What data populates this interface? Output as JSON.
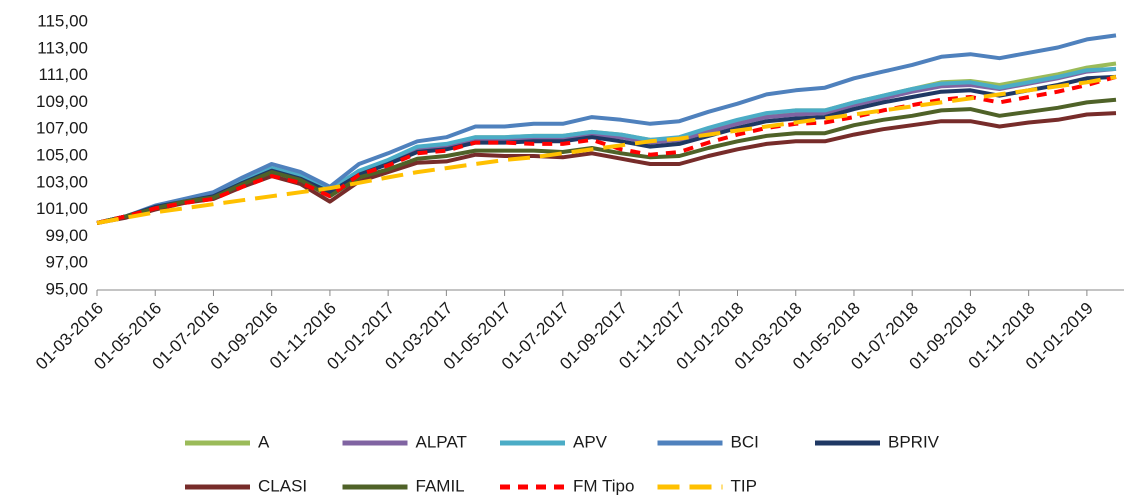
{
  "chart_data": {
    "type": "line",
    "categories": [
      "01-03-2016",
      null,
      "01-05-2016",
      null,
      "01-07-2016",
      null,
      "01-09-2016",
      null,
      "01-11-2016",
      null,
      "01-01-2017",
      null,
      "01-03-2017",
      null,
      "01-05-2017",
      null,
      "01-07-2017",
      null,
      "01-09-2017",
      null,
      "01-11-2017",
      null,
      "01-01-2018",
      null,
      "01-03-2018",
      null,
      "01-05-2018",
      null,
      "01-07-2018",
      null,
      "01-09-2018",
      null,
      "01-11-2018",
      null,
      "01-01-2019",
      null
    ],
    "ylim": [
      95,
      115
    ],
    "yticks": [
      {
        "value": 95,
        "label": "95,00"
      },
      {
        "value": 97,
        "label": "97,00"
      },
      {
        "value": 99,
        "label": "99,00"
      },
      {
        "value": 101,
        "label": "101,00"
      },
      {
        "value": 103,
        "label": "103,00"
      },
      {
        "value": 105,
        "label": "105,00"
      },
      {
        "value": 107,
        "label": "107,00"
      },
      {
        "value": 109,
        "label": "109,00"
      },
      {
        "value": 111,
        "label": "111,00"
      },
      {
        "value": 113,
        "label": "113,00"
      },
      {
        "value": 115,
        "label": "115,00"
      }
    ],
    "grid": false,
    "series": [
      {
        "name": "A",
        "color": "#9bbb59",
        "dashed": false,
        "values": [
          100,
          100.5,
          101.2,
          101.7,
          102.1,
          103.2,
          104.1,
          103.5,
          102.5,
          103.8,
          104.6,
          105.6,
          105.8,
          106.4,
          106.4,
          106.5,
          106.5,
          106.8,
          106.6,
          106.2,
          106.3,
          107.0,
          107.6,
          108.1,
          108.4,
          108.4,
          109.0,
          109.5,
          110.0,
          110.5,
          110.6,
          110.3,
          110.7,
          111.1,
          111.6,
          111.9
        ]
      },
      {
        "name": "ALPAT",
        "color": "#8064a2",
        "dashed": false,
        "values": [
          100,
          100.5,
          101.2,
          101.7,
          102.1,
          103.1,
          104.0,
          103.4,
          102.4,
          103.7,
          104.5,
          105.5,
          105.7,
          106.2,
          106.2,
          106.3,
          106.3,
          106.6,
          106.4,
          106.0,
          106.2,
          106.8,
          107.4,
          107.9,
          108.1,
          108.2,
          108.8,
          109.3,
          109.8,
          110.2,
          110.3,
          110.0,
          110.4,
          110.8,
          111.3,
          111.5
        ]
      },
      {
        "name": "APV",
        "color": "#4bacc6",
        "dashed": false,
        "values": [
          100,
          100.5,
          101.2,
          101.7,
          102.2,
          103.2,
          104.1,
          103.5,
          102.5,
          103.9,
          104.7,
          105.7,
          105.9,
          106.4,
          106.4,
          106.5,
          106.5,
          106.8,
          106.6,
          106.2,
          106.4,
          107.1,
          107.7,
          108.2,
          108.4,
          108.4,
          109.0,
          109.5,
          110.0,
          110.4,
          110.5,
          110.1,
          110.5,
          110.9,
          111.4,
          111.5
        ]
      },
      {
        "name": "BCI",
        "color": "#4f81bd",
        "dashed": false,
        "values": [
          100,
          100.5,
          101.3,
          101.8,
          102.3,
          103.4,
          104.4,
          103.8,
          102.7,
          104.4,
          105.2,
          106.1,
          106.4,
          107.2,
          107.2,
          107.4,
          107.4,
          107.9,
          107.7,
          107.4,
          107.6,
          108.3,
          108.9,
          109.6,
          109.9,
          110.1,
          110.8,
          111.3,
          111.8,
          112.4,
          112.6,
          112.3,
          112.7,
          113.1,
          113.7,
          114.0
        ]
      },
      {
        "name": "BPRIV",
        "color": "#1f3864",
        "dashed": false,
        "values": [
          100,
          100.5,
          101.2,
          101.6,
          102.0,
          103.0,
          103.9,
          103.3,
          102.3,
          103.6,
          104.4,
          105.3,
          105.5,
          106.0,
          106.0,
          106.1,
          106.1,
          106.4,
          106.1,
          105.7,
          105.9,
          106.5,
          107.1,
          107.6,
          107.8,
          107.9,
          108.5,
          109.0,
          109.4,
          109.8,
          109.9,
          109.5,
          109.9,
          110.3,
          110.8,
          110.9
        ]
      },
      {
        "name": "CLASI",
        "color": "#772c2a",
        "dashed": false,
        "values": [
          100,
          100.4,
          101.0,
          101.5,
          101.8,
          102.7,
          103.5,
          102.9,
          101.6,
          103.1,
          103.8,
          104.5,
          104.6,
          105.1,
          105.0,
          105.0,
          104.9,
          105.2,
          104.8,
          104.4,
          104.4,
          105.0,
          105.5,
          105.9,
          106.1,
          106.1,
          106.6,
          107.0,
          107.3,
          107.6,
          107.6,
          107.2,
          107.5,
          107.7,
          108.1,
          108.2
        ]
      },
      {
        "name": "FAMIL",
        "color": "#4f6228",
        "dashed": false,
        "values": [
          100,
          100.5,
          101.1,
          101.6,
          101.9,
          102.9,
          103.8,
          103.2,
          102.0,
          103.4,
          104.0,
          104.8,
          105.0,
          105.4,
          105.4,
          105.4,
          105.3,
          105.6,
          105.2,
          104.9,
          105.0,
          105.6,
          106.1,
          106.5,
          106.7,
          106.7,
          107.3,
          107.7,
          108.0,
          108.4,
          108.5,
          108.0,
          108.3,
          108.6,
          109.0,
          109.2
        ]
      },
      {
        "name": "FM Tipo",
        "color": "#ff0000",
        "dashed": true,
        "values": [
          100,
          100.5,
          101.1,
          101.5,
          101.8,
          102.7,
          103.5,
          103.0,
          102.0,
          103.6,
          104.3,
          105.2,
          105.4,
          106.0,
          106.0,
          105.9,
          105.9,
          106.2,
          105.5,
          105.1,
          105.3,
          106.0,
          106.6,
          107.1,
          107.4,
          107.5,
          107.9,
          108.4,
          108.8,
          109.2,
          109.4,
          109.0,
          109.4,
          109.8,
          110.3,
          110.9
        ]
      },
      {
        "name": "TIP",
        "color": "#ffc000",
        "dashed": true,
        "values": [
          100,
          100.4,
          100.8,
          101.1,
          101.4,
          101.7,
          102.0,
          102.3,
          102.6,
          103.0,
          103.4,
          103.8,
          104.1,
          104.4,
          104.7,
          104.9,
          105.2,
          105.5,
          105.8,
          106.1,
          106.3,
          106.6,
          106.9,
          107.2,
          107.5,
          107.8,
          108.1,
          108.4,
          108.7,
          109.0,
          109.3,
          109.6,
          109.9,
          110.2,
          110.5,
          110.9
        ]
      }
    ]
  }
}
